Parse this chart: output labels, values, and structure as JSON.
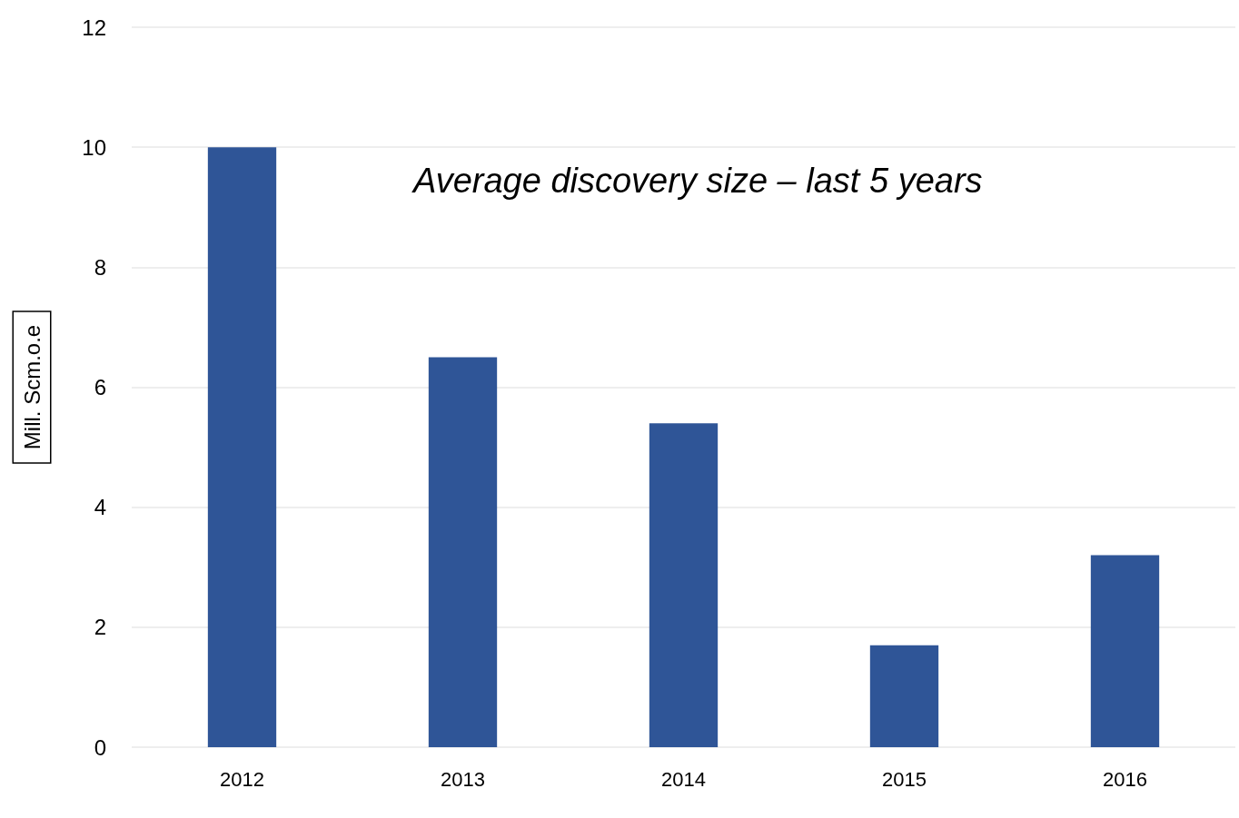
{
  "chart_data": {
    "type": "bar",
    "title": "Average discovery size – last 5 years",
    "ylabel": "Mill. Scm.o.e",
    "categories": [
      "2012",
      "2013",
      "2014",
      "2015",
      "2016"
    ],
    "values": [
      10,
      6.5,
      5.4,
      1.7,
      3.2
    ],
    "color": "#2f5597",
    "ylim": [
      0,
      12
    ],
    "yticks": [
      0,
      2,
      4,
      6,
      8,
      10,
      12
    ],
    "grid": "y"
  }
}
